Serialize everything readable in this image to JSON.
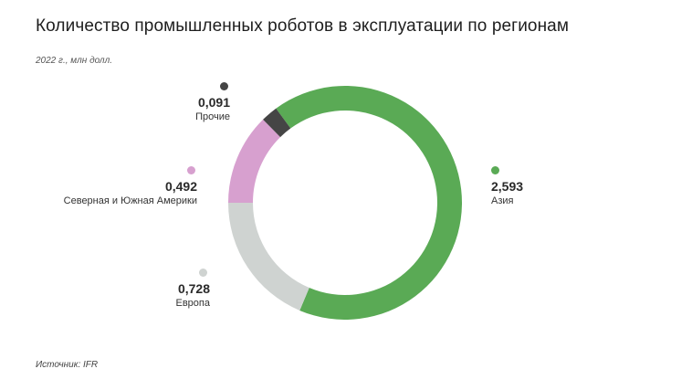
{
  "header": {
    "title": "Количество промышленных роботов в эксплуатации по регионам",
    "subtitle": "2022 г., млн долл."
  },
  "footer": {
    "source": "Источник: IFR"
  },
  "labels": {
    "asia": {
      "value": "2,593",
      "name": "Азия"
    },
    "europe": {
      "value": "0,728",
      "name": "Европа"
    },
    "americas": {
      "value": "0,492",
      "name": "Северная и Южная Америки"
    },
    "other": {
      "value": "0,091",
      "name": "Прочие"
    }
  },
  "colors": {
    "asia": "#5aaa55",
    "europe": "#cfd3d1",
    "americas": "#d7a0cf",
    "other": "#454545"
  },
  "chart_data": {
    "type": "pie",
    "subtype": "donut",
    "title": "Количество промышленных роботов в эксплуатации по регионам",
    "subtitle": "2022 г., млн долл.",
    "categories": [
      "Азия",
      "Европа",
      "Северная и Южная Америки",
      "Прочие"
    ],
    "values": [
      2.593,
      0.728,
      0.492,
      0.091
    ],
    "value_labels": [
      "2,593",
      "0,728",
      "0,492",
      "0,091"
    ],
    "colors": [
      "#5aaa55",
      "#cfd3d1",
      "#d7a0cf",
      "#454545"
    ],
    "source": "Источник: IFR",
    "legend_position": "labels around donut"
  }
}
